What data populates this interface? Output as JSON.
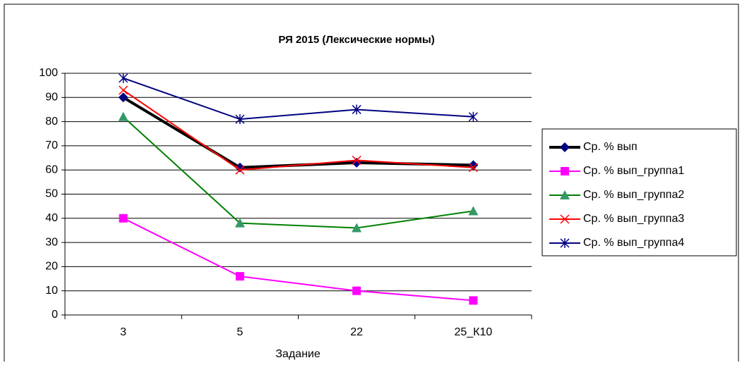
{
  "chart_data": {
    "type": "line",
    "title": "РЯ 2015  (Лексические нормы)",
    "x_label": "Задание",
    "categories": [
      "3",
      "5",
      "22",
      "25_К10"
    ],
    "ylim": [
      0,
      100
    ],
    "yticks": [
      0,
      10,
      20,
      30,
      40,
      50,
      60,
      70,
      80,
      90,
      100
    ],
    "grid": true,
    "legend": "right",
    "series": [
      {
        "name": "Ср. % вып",
        "color": "#000000",
        "marker": "diamond",
        "marker_color": "#000080",
        "line_width": 4,
        "values": [
          90,
          61,
          63,
          62
        ]
      },
      {
        "name": "Ср. % вып_группа1",
        "color": "#ff00ff",
        "marker": "square",
        "marker_color": "#ff00ff",
        "line_width": 2,
        "values": [
          40,
          16,
          10,
          6
        ]
      },
      {
        "name": "Ср. % вып_группа2",
        "color": "#008000",
        "marker": "triangle",
        "marker_color": "#339966",
        "line_width": 2,
        "values": [
          82,
          38,
          36,
          43
        ]
      },
      {
        "name": "Ср. % вып_группа3",
        "color": "#ff0000",
        "marker": "x",
        "marker_color": "#ff0000",
        "line_width": 2,
        "values": [
          93,
          60,
          64,
          61
        ]
      },
      {
        "name": "Ср. % вып_группа4",
        "color": "#000080",
        "marker": "star",
        "marker_color": "#000080",
        "line_width": 2,
        "values": [
          98,
          81,
          85,
          82
        ]
      }
    ]
  }
}
